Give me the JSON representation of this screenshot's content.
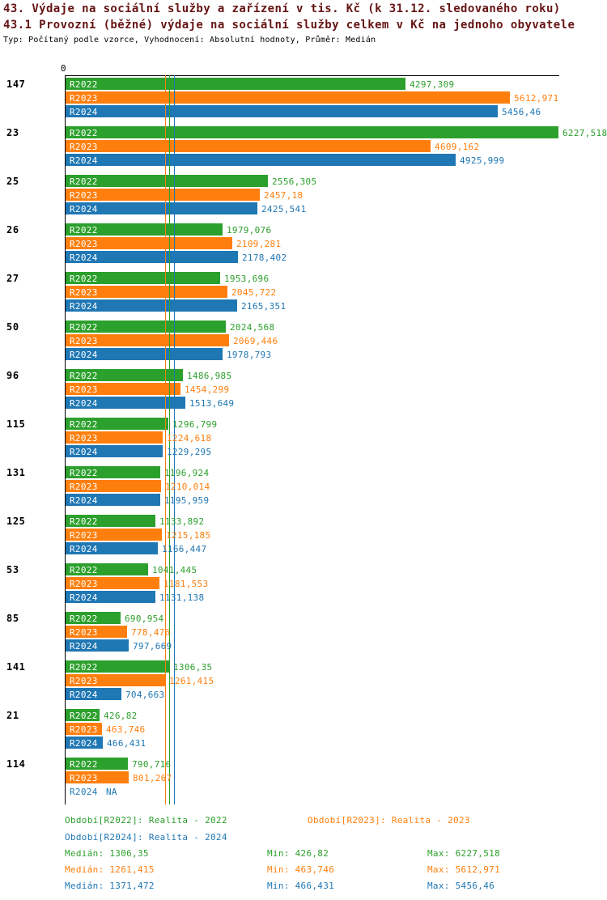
{
  "title": {
    "line1": "43. Výdaje na sociální služby a zařízení v tis. Kč (k 31.12. sledovaného roku)",
    "line2": "43.1 Provozní (běžné) výdaje na sociální služby celkem v Kč na jednoho obyvatele",
    "line3": "Typ: Počítaný podle vzorce, Vyhodnocení: Absolutní hodnoty, Průměr: Medián"
  },
  "axis": {
    "zero_label": "0"
  },
  "colors": {
    "r2022": "#2ca02c",
    "r2023": "#ff7f0e",
    "r2024": "#1f77b4",
    "title": "#661414",
    "axis": "#000000"
  },
  "chart_data": {
    "type": "bar",
    "orientation": "horizontal",
    "title": "43.1 Provozní (běžné) výdaje na sociální služby celkem v Kč na jednoho obyvatele",
    "xlabel": "",
    "ylabel": "",
    "xlim": [
      0,
      6227.518
    ],
    "grid": false,
    "legend_position": "bottom",
    "categories": [
      "147",
      "23",
      "25",
      "26",
      "27",
      "50",
      "96",
      "115",
      "131",
      "125",
      "53",
      "85",
      "141",
      "21",
      "114"
    ],
    "series": [
      {
        "name": "R2022",
        "color_key": "r2022",
        "median": 1306.35,
        "values": [
          4297.309,
          6227.518,
          2556.305,
          1979.076,
          1953.696,
          2024.568,
          1486.985,
          1296.799,
          1196.924,
          1133.892,
          1041.445,
          690.954,
          1306.35,
          426.82,
          790.716
        ],
        "display": [
          "4297,309",
          "6227,518",
          "2556,305",
          "1979,076",
          "1953,696",
          "2024,568",
          "1486,985",
          "1296,799",
          "1196,924",
          "1133,892",
          "1041,445",
          "690,954",
          "1306,35",
          "426,82",
          "790,716"
        ]
      },
      {
        "name": "R2023",
        "color_key": "r2023",
        "median": 1261.415,
        "values": [
          5612.971,
          4609.162,
          2457.18,
          2109.281,
          2045.722,
          2069.446,
          1454.299,
          1224.618,
          1210.014,
          1215.185,
          1181.553,
          778.476,
          1261.415,
          463.746,
          801.267
        ],
        "display": [
          "5612,971",
          "4609,162",
          "2457,18",
          "2109,281",
          "2045,722",
          "2069,446",
          "1454,299",
          "1224,618",
          "1210,014",
          "1215,185",
          "1181,553",
          "778,476",
          "1261,415",
          "463,746",
          "801,267"
        ]
      },
      {
        "name": "R2024",
        "color_key": "r2024",
        "median": 1371.472,
        "values": [
          5456.46,
          4925.999,
          2425.541,
          2178.402,
          2165.351,
          1978.793,
          1513.649,
          1229.295,
          1195.959,
          1166.447,
          1131.138,
          797.669,
          704.663,
          466.431,
          null
        ],
        "display": [
          "5456,46",
          "4925,999",
          "2425,541",
          "2178,402",
          "2165,351",
          "1978,793",
          "1513,649",
          "1229,295",
          "1195,959",
          "1166,447",
          "1131,138",
          "797,669",
          "704,663",
          "466,431",
          "NA"
        ]
      }
    ]
  },
  "legend": {
    "periods": [
      {
        "label": "Období[R2022]: Realita - 2022",
        "color_key": "r2022"
      },
      {
        "label": "Období[R2023]: Realita - 2023",
        "color_key": "r2023"
      },
      {
        "label": "Období[R2024]: Realita - 2024",
        "color_key": "r2024"
      }
    ],
    "stats": [
      {
        "median": "Medián: 1306,35",
        "min": "Min: 426,82",
        "max": "Max: 6227,518",
        "color_key": "r2022"
      },
      {
        "median": "Medián: 1261,415",
        "min": "Min: 463,746",
        "max": "Max: 5612,971",
        "color_key": "r2023"
      },
      {
        "median": "Medián: 1371,472",
        "min": "Min: 466,431",
        "max": "Max: 5456,46",
        "color_key": "r2024"
      }
    ]
  }
}
